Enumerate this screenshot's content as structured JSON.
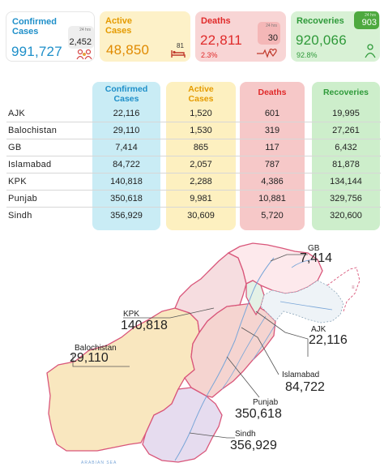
{
  "cards": {
    "confirmed": {
      "title_line1": "Confirmed",
      "title_line2": "Cases",
      "value": "991,727",
      "badge_label": "24 hrs",
      "badge_value": "2,452",
      "icon": "virus-people-icon"
    },
    "active": {
      "title_line1": "Active",
      "title_line2": "Cases",
      "value": "48,850",
      "badge_value": "81",
      "icon": "hospital-bed-icon"
    },
    "deaths": {
      "title": "Deaths",
      "value": "22,811",
      "pct": "2.3%",
      "badge_label": "24 hrs",
      "badge_value": "30",
      "icon": "heartbeat-icon"
    },
    "recoveries": {
      "title": "Recoveries",
      "value": "920,066",
      "pct": "92.8%",
      "badge_label": "24 hrs",
      "badge_value": "903",
      "icon": "recovered-person-icon"
    }
  },
  "table": {
    "headers": {
      "confirmed_line1": "Confirmed",
      "confirmed_line2": "Cases",
      "active_line1": "Active",
      "active_line2": "Cases",
      "deaths": "Deaths",
      "recoveries": "Recoveries"
    },
    "rows": [
      {
        "region": "AJK",
        "confirmed": "22,116",
        "active": "1,520",
        "deaths": "601",
        "recoveries": "19,995"
      },
      {
        "region": "Balochistan",
        "confirmed": "29,110",
        "active": "1,530",
        "deaths": "319",
        "recoveries": "27,261"
      },
      {
        "region": "GB",
        "confirmed": "7,414",
        "active": "865",
        "deaths": "117",
        "recoveries": "6,432"
      },
      {
        "region": "Islamabad",
        "confirmed": "84,722",
        "active": "2,057",
        "deaths": "787",
        "recoveries": "81,878"
      },
      {
        "region": "KPK",
        "confirmed": "140,818",
        "active": "2,288",
        "deaths": "4,386",
        "recoveries": "134,144"
      },
      {
        "region": "Punjab",
        "confirmed": "350,618",
        "active": "9,981",
        "deaths": "10,881",
        "recoveries": "329,756"
      },
      {
        "region": "Sindh",
        "confirmed": "356,929",
        "active": "30,609",
        "deaths": "5,720",
        "recoveries": "320,600"
      }
    ]
  },
  "map": {
    "labels": {
      "gb_name": "GB",
      "gb_value": "7,414",
      "kpk_name": "KPK",
      "kpk_value": "140,818",
      "ajk_name": "AJK",
      "ajk_value": "22,116",
      "balochistan_name": "Balochistan",
      "balochistan_value": "29,110",
      "islamabad_name": "Islamabad",
      "islamabad_value": "84,722",
      "punjab_name": "Punjab",
      "punjab_value": "350,618",
      "sindh_name": "Sindh",
      "sindh_value": "356,929",
      "sea_label": "ARABIAN SEA"
    },
    "colors": {
      "balochistan": "#f9e7bf",
      "sindh": "#e6dcef",
      "punjab": "#f5d4d0",
      "kpk": "#f6dde0",
      "gb": "#fde9ec",
      "ajk": "#e4f1e6",
      "borders": "#d9567a"
    }
  }
}
